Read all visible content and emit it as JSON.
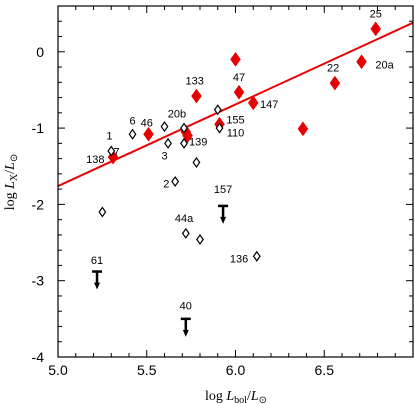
{
  "chart_data": {
    "type": "scatter",
    "xlabel": "log L_bol/L_⊙",
    "ylabel": "log L_X/L_⊙",
    "xlim": [
      5.0,
      7.0
    ],
    "ylim": [
      -4,
      0.6
    ],
    "x_ticks": [
      5.0,
      5.5,
      6.0,
      6.5
    ],
    "x_tick_labels": [
      "5.0",
      "5.5",
      "6.0",
      "6.5"
    ],
    "y_ticks": [
      0,
      -1,
      -2,
      -3,
      -4
    ],
    "y_tick_labels": [
      "0",
      "-1",
      "-2",
      "-3",
      "-4"
    ],
    "fit_line": {
      "x": [
        5.0,
        7.0
      ],
      "y": [
        -1.76,
        0.38
      ],
      "color": "#e60000"
    },
    "colors": {
      "filled": "#e60000",
      "open": "#000000"
    },
    "series": [
      {
        "marker": "filled-diamond",
        "points": [
          {
            "x": 5.31,
            "y": -1.38,
            "label": ""
          },
          {
            "x": 5.51,
            "y": -1.08,
            "label": ""
          },
          {
            "x": 5.72,
            "y": -1.05,
            "label": ""
          },
          {
            "x": 5.73,
            "y": -1.1,
            "label": ""
          },
          {
            "x": 5.78,
            "y": -0.58,
            "label": ""
          },
          {
            "x": 5.91,
            "y": -0.95,
            "label": ""
          },
          {
            "x": 6.0,
            "y": -0.1,
            "label": ""
          },
          {
            "x": 6.02,
            "y": -0.53,
            "label": ""
          },
          {
            "x": 6.1,
            "y": -0.67,
            "label": ""
          },
          {
            "x": 6.38,
            "y": -1.01,
            "label": ""
          },
          {
            "x": 6.56,
            "y": -0.41,
            "label": ""
          },
          {
            "x": 6.71,
            "y": -0.13,
            "label": ""
          },
          {
            "x": 6.79,
            "y": 0.3,
            "label": ""
          }
        ]
      },
      {
        "marker": "open-diamond",
        "points": [
          {
            "x": 5.25,
            "y": -2.1
          },
          {
            "x": 5.3,
            "y": -1.3
          },
          {
            "x": 5.42,
            "y": -1.08
          },
          {
            "x": 5.6,
            "y": -0.98
          },
          {
            "x": 5.62,
            "y": -1.2
          },
          {
            "x": 5.66,
            "y": -1.7
          },
          {
            "x": 5.71,
            "y": -1.0
          },
          {
            "x": 5.71,
            "y": -1.2
          },
          {
            "x": 5.72,
            "y": -2.38
          },
          {
            "x": 5.78,
            "y": -1.45
          },
          {
            "x": 5.8,
            "y": -2.46
          },
          {
            "x": 5.9,
            "y": -0.76
          },
          {
            "x": 5.91,
            "y": -1.0
          },
          {
            "x": 6.12,
            "y": -2.68
          }
        ]
      },
      {
        "marker": "upper-limit",
        "points": [
          {
            "x": 5.22,
            "y": -2.88
          },
          {
            "x": 5.72,
            "y": -3.5
          },
          {
            "x": 5.93,
            "y": -2.02
          }
        ]
      }
    ],
    "annotations": [
      {
        "text": "25",
        "x": 6.79,
        "y": 0.45
      },
      {
        "text": "22",
        "x": 6.55,
        "y": -0.26
      },
      {
        "text": "20a",
        "x": 6.84,
        "y": -0.22
      },
      {
        "text": "47",
        "x": 6.02,
        "y": -0.38
      },
      {
        "text": "133",
        "x": 5.77,
        "y": -0.43
      },
      {
        "text": "147",
        "x": 6.19,
        "y": -0.74
      },
      {
        "text": "155",
        "x": 6.0,
        "y": -0.94
      },
      {
        "text": "110",
        "x": 6.0,
        "y": -1.11
      },
      {
        "text": "6",
        "x": 5.42,
        "y": -0.95
      },
      {
        "text": "46",
        "x": 5.5,
        "y": -0.98
      },
      {
        "text": "20b",
        "x": 5.67,
        "y": -0.86
      },
      {
        "text": "1",
        "x": 5.29,
        "y": -1.15
      },
      {
        "text": "3",
        "x": 5.6,
        "y": -1.41
      },
      {
        "text": "139",
        "x": 5.79,
        "y": -1.23
      },
      {
        "text": "138",
        "x": 5.21,
        "y": -1.46
      },
      {
        "text": "7",
        "x": 5.33,
        "y": -1.36
      },
      {
        "text": "2",
        "x": 5.61,
        "y": -1.78
      },
      {
        "text": "157",
        "x": 5.93,
        "y": -1.85
      },
      {
        "text": "44a",
        "x": 5.71,
        "y": -2.23
      },
      {
        "text": "136",
        "x": 6.02,
        "y": -2.76
      },
      {
        "text": "61",
        "x": 5.22,
        "y": -2.78
      },
      {
        "text": "40",
        "x": 5.72,
        "y": -3.38
      }
    ]
  }
}
